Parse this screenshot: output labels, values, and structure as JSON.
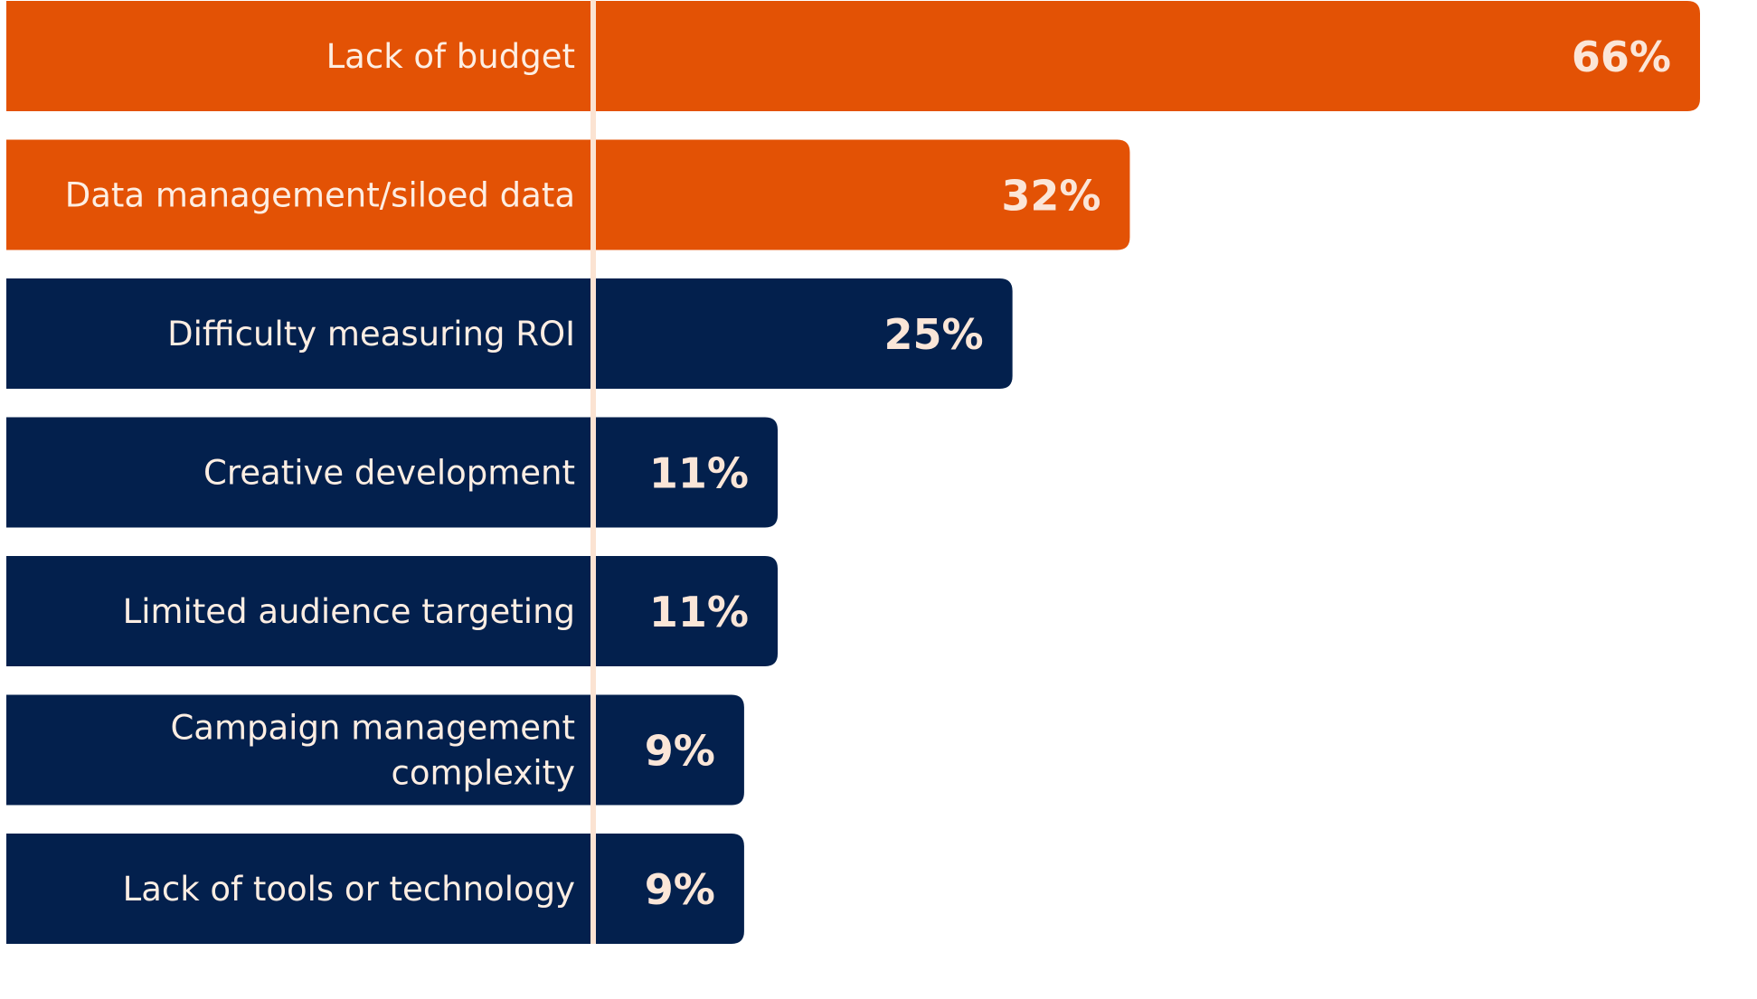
{
  "chart_data": {
    "type": "bar",
    "orientation": "horizontal",
    "title": "",
    "xlabel": "",
    "ylabel": "",
    "xlim": [
      0,
      66
    ],
    "grid": false,
    "legend": "none",
    "categories": [
      "Lack of budget",
      "Data management/siloed data",
      "Difficulty measuring ROI",
      "Creative development",
      "Limited audience targeting",
      "Campaign management complexity",
      "Lack of tools or technology"
    ],
    "category_lines": [
      [
        "Lack of budget"
      ],
      [
        "Data management/siloed data"
      ],
      [
        "Difficulty measuring ROI"
      ],
      [
        "Creative development"
      ],
      [
        "Limited audience targeting"
      ],
      [
        "Campaign management",
        "complexity"
      ],
      [
        "Lack of tools or technology"
      ]
    ],
    "values": [
      66,
      32,
      25,
      11,
      11,
      9,
      9
    ],
    "value_labels": [
      "66%",
      "32%",
      "25%",
      "11%",
      "11%",
      "9%",
      "9%"
    ],
    "bar_colors": [
      "#e35205",
      "#e35205",
      "#03204d",
      "#03204d",
      "#03204d",
      "#03204d",
      "#03204d"
    ],
    "divider_color": "#fbe3d2"
  }
}
